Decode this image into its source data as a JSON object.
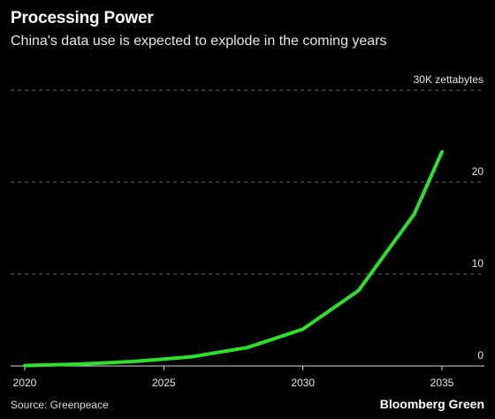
{
  "header": {
    "title": "Processing Power",
    "subtitle": "China's data use is expected to explode in the coming years"
  },
  "footer": {
    "source": "Source: Greenpeace",
    "brand": "Bloomberg Green"
  },
  "colors": {
    "background": "#000000",
    "line": "#2ce02c",
    "grid": "#666666",
    "text": "#e6e6e6"
  },
  "chart_data": {
    "type": "line",
    "title": "Processing Power",
    "subtitle": "China's data use is expected to explode in the coming years",
    "xlabel": "",
    "ylabel": "",
    "unit_label": "30K zettabytes",
    "xlim": [
      2020,
      2035
    ],
    "ylim": [
      0,
      30
    ],
    "x_ticks": [
      2020,
      2025,
      2030,
      2035
    ],
    "y_ticks": [
      {
        "value": 0,
        "label": "0"
      },
      {
        "value": 10,
        "label": "10"
      },
      {
        "value": 20,
        "label": "20"
      },
      {
        "value": 30,
        "label": "30K zettabytes"
      }
    ],
    "grid": "horizontal dashed",
    "y_axis_side": "right",
    "series": [
      {
        "x": [
          2020,
          2022,
          2024,
          2026,
          2028,
          2030,
          2032,
          2034,
          2035
        ],
        "y": [
          0.05,
          0.2,
          0.5,
          1.0,
          2.0,
          4.0,
          8.2,
          16.5,
          23.3
        ]
      }
    ]
  }
}
